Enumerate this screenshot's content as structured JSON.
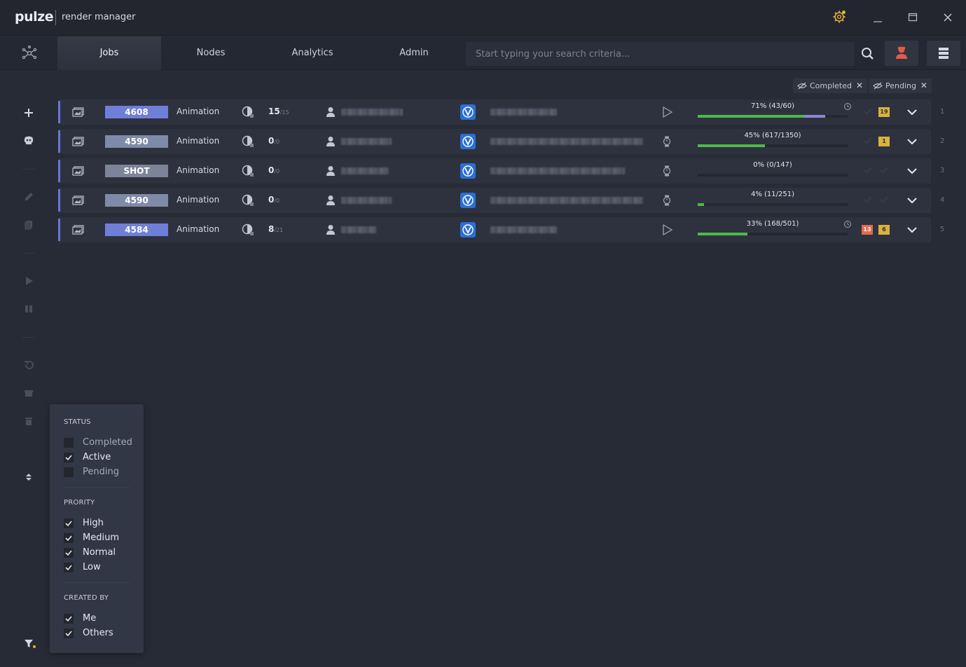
{
  "app": {
    "brand": "pulze",
    "subtitle": "render manager"
  },
  "nav": {
    "tabs": [
      {
        "label": "Jobs",
        "active": true
      },
      {
        "label": "Nodes",
        "active": false
      },
      {
        "label": "Analytics",
        "active": false
      },
      {
        "label": "Admin",
        "active": false
      }
    ],
    "search_placeholder": "Start typing your search criteria..."
  },
  "filter_chips": [
    {
      "label": "Completed"
    },
    {
      "label": "Pending"
    }
  ],
  "jobs": [
    {
      "id": "4608",
      "badge_color": "#6f7fd8",
      "type": "Animation",
      "frames_done": "15",
      "frames_total": "/15",
      "status": "rendering",
      "percent_label": "71%  (43/60)",
      "progress": 0.71,
      "secondary_progress": 0.85,
      "counts": [
        "19"
      ],
      "row_number": "1"
    },
    {
      "id": "4590",
      "badge_color": "#7f8aa8",
      "type": "Animation",
      "frames_done": "0",
      "frames_total": "/0",
      "status": "waiting",
      "percent_label": "45%  (617/1350)",
      "progress": 0.45,
      "counts": [
        "1"
      ],
      "row_number": "2"
    },
    {
      "id": "SHOT",
      "badge_color": "#7d8498",
      "type": "Animation",
      "frames_done": "0",
      "frames_total": "/0",
      "status": "waiting",
      "percent_label": "0%  (0/147)",
      "progress": 0.0,
      "counts": [],
      "row_number": "3"
    },
    {
      "id": "4590",
      "badge_color": "#7f8aa8",
      "type": "Animation",
      "frames_done": "0",
      "frames_total": "/0",
      "status": "waiting",
      "percent_label": "4%  (11/251)",
      "progress": 0.04,
      "counts": [],
      "row_number": "4"
    },
    {
      "id": "4584",
      "badge_color": "#6f7fd8",
      "type": "Animation",
      "frames_done": "8",
      "frames_total": "/21",
      "status": "rendering",
      "percent_label": "33%  (168/501)",
      "progress": 0.33,
      "counts": [
        "13",
        "6"
      ],
      "row_number": "5"
    }
  ],
  "filter_popup": {
    "status_title": "STATUS",
    "status": [
      {
        "label": "Completed",
        "checked": false
      },
      {
        "label": "Active",
        "checked": true
      },
      {
        "label": "Pending",
        "checked": false
      }
    ],
    "priority_title": "PRORITY",
    "priority": [
      {
        "label": "High",
        "checked": true
      },
      {
        "label": "Medium",
        "checked": true
      },
      {
        "label": "Normal",
        "checked": true
      },
      {
        "label": "Low",
        "checked": true
      }
    ],
    "created_title": "CREATED BY",
    "created_by": [
      {
        "label": "Me",
        "checked": true
      },
      {
        "label": "Others",
        "checked": true
      }
    ]
  },
  "colors": {
    "accent": "#6b76d6",
    "progress_green": "#4fb84a",
    "progress_purple": "#8f86d8",
    "warning_yellow": "#d9b13c",
    "error_red": "#e06a4f",
    "vray_blue": "#2a6fd6"
  },
  "icons": {
    "settings": "gear-icon",
    "minimize": "minimize-icon",
    "maximize": "maximize-icon",
    "close": "close-icon",
    "search": "search-icon",
    "user": "user-icon",
    "list": "list-icon"
  }
}
